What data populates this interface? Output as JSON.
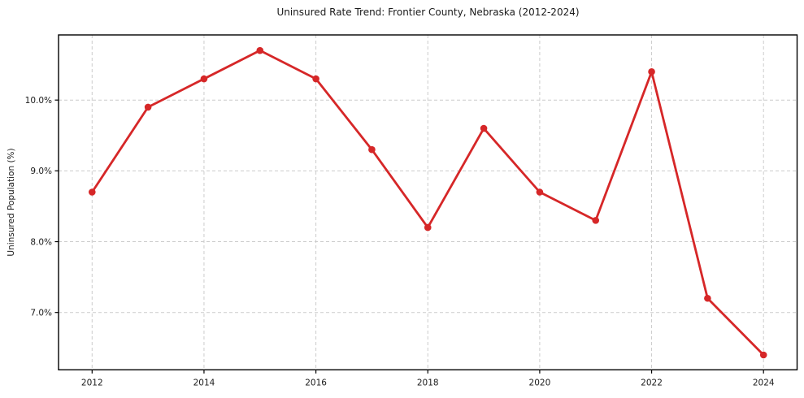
{
  "chart_data": {
    "type": "line",
    "title": "Uninsured Rate Trend: Frontier County, Nebraska (2012-2024)",
    "xlabel": "",
    "ylabel": "Uninsured Population (%)",
    "x": [
      2012,
      2013,
      2014,
      2015,
      2016,
      2017,
      2018,
      2019,
      2020,
      2021,
      2022,
      2023,
      2024
    ],
    "values": [
      8.7,
      9.9,
      10.3,
      10.7,
      10.3,
      9.3,
      8.2,
      9.6,
      8.7,
      8.3,
      10.4,
      7.2,
      6.4
    ],
    "xlim": [
      2011.4,
      2024.6
    ],
    "ylim": [
      6.19,
      10.92
    ],
    "x_ticks": [
      2012,
      2014,
      2016,
      2018,
      2020,
      2022,
      2024
    ],
    "x_tick_labels": [
      "2012",
      "2014",
      "2016",
      "2018",
      "2020",
      "2022",
      "2024"
    ],
    "y_ticks": [
      7.0,
      8.0,
      9.0,
      10.0
    ],
    "y_tick_labels": [
      "7.0%",
      "8.0%",
      "9.0%",
      "10.0%"
    ],
    "grid": true,
    "grid_style": "dashed",
    "legend": false,
    "marker": "o",
    "colors": {
      "line": "#d62728",
      "marker": "#d62728",
      "grid": "#cccccc",
      "spine": "#000000",
      "text": "#1a1a1a"
    }
  }
}
